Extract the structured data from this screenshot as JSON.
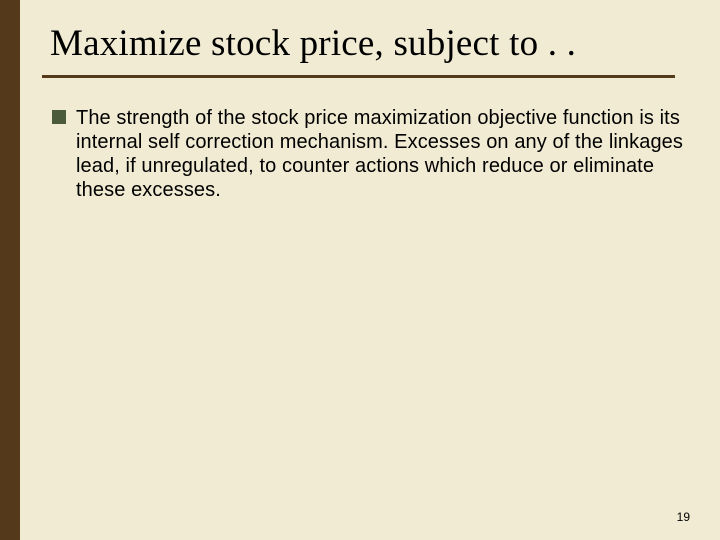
{
  "colors": {
    "left_border": "#543a1a",
    "background": "#f0ebd2",
    "underline": "#543a1a",
    "bullet": "#4a5a3a",
    "text": "#000000"
  },
  "title": "Maximize stock price, subject to . .",
  "bullet": {
    "text": "The strength of the stock price maximization objective function is its internal self correction mechanism. Excesses on any of the linkages lead, if unregulated, to counter actions which reduce or eliminate these excesses."
  },
  "page_number": "19",
  "layout": {
    "slide_width": 720,
    "slide_height": 540,
    "left_border_width": 20,
    "title_fontsize": 37,
    "body_fontsize": 20,
    "pagenum_fontsize": 12
  }
}
